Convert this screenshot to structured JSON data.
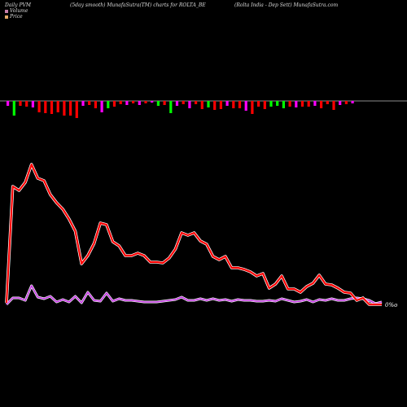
{
  "header": {
    "left": "Daily PVM",
    "middle": "(5day smooth) MunafaSutra(TM) charts for ROLTA_BE",
    "right": "(Rolta India - Dep Sett) MunafaSutra.com"
  },
  "legend": {
    "volume_label": "Volume",
    "price_label": "Price",
    "volume_color": "#c87eaa",
    "price_color": "#e4a866"
  },
  "colors": {
    "background": "#000000",
    "price_line": "#ff0000",
    "price_glow": "#ffffff",
    "volume_line": "#c030e0",
    "bar_up": "#00ff00",
    "bar_down": "#ff0000",
    "bar_neutral": "#ff00ff",
    "baseline": "#bbbbbb"
  },
  "end_label": "0%o",
  "chart_data": {
    "type": "line",
    "series": [
      {
        "kind": "price",
        "values": [
          2,
          145,
          140,
          150,
          172,
          155,
          152,
          135,
          125,
          117,
          105,
          90,
          50,
          60,
          75,
          100,
          98,
          77,
          72,
          60,
          60,
          63,
          60,
          52,
          52,
          51,
          57,
          68,
          88,
          85,
          88,
          78,
          74,
          59,
          55,
          59,
          45,
          45,
          43,
          40,
          35,
          38,
          20,
          25,
          35,
          19,
          19,
          15,
          22,
          26,
          36,
          25,
          24,
          20,
          15,
          14,
          5,
          8,
          0,
          0,
          0
        ]
      },
      {
        "kind": "volume",
        "values": [
          0,
          8,
          8,
          5,
          23,
          9,
          7,
          10,
          3,
          6,
          3,
          10,
          2,
          15,
          5,
          4,
          14,
          4,
          7,
          5,
          5,
          4,
          3,
          3,
          3,
          4,
          5,
          6,
          9,
          5,
          5,
          7,
          5,
          7,
          5,
          6,
          4,
          6,
          5,
          5,
          4,
          4,
          5,
          4,
          7,
          5,
          3,
          4,
          6,
          3,
          6,
          5,
          7,
          5,
          5,
          7,
          8,
          7,
          5,
          1,
          3
        ]
      }
    ],
    "bars": [
      {
        "value": -6,
        "color": "neutral"
      },
      {
        "value": -18,
        "color": "up"
      },
      {
        "value": -6,
        "color": "down"
      },
      {
        "value": -7,
        "color": "down"
      },
      {
        "value": -8,
        "color": "neutral"
      },
      {
        "value": -14,
        "color": "down"
      },
      {
        "value": -15,
        "color": "down"
      },
      {
        "value": -16,
        "color": "down"
      },
      {
        "value": -14,
        "color": "down"
      },
      {
        "value": -18,
        "color": "down"
      },
      {
        "value": -18,
        "color": "down"
      },
      {
        "value": -21,
        "color": "down"
      },
      {
        "value": -6,
        "color": "neutral"
      },
      {
        "value": -5,
        "color": "down"
      },
      {
        "value": -9,
        "color": "down"
      },
      {
        "value": -14,
        "color": "neutral"
      },
      {
        "value": -9,
        "color": "up"
      },
      {
        "value": -7,
        "color": "down"
      },
      {
        "value": -4,
        "color": "down"
      },
      {
        "value": -5,
        "color": "neutral"
      },
      {
        "value": -3,
        "color": "down"
      },
      {
        "value": -5,
        "color": "neutral"
      },
      {
        "value": -3,
        "color": "down"
      },
      {
        "value": -2,
        "color": "neutral"
      },
      {
        "value": -6,
        "color": "up"
      },
      {
        "value": -5,
        "color": "down"
      },
      {
        "value": -15,
        "color": "up"
      },
      {
        "value": -6,
        "color": "neutral"
      },
      {
        "value": -4,
        "color": "down"
      },
      {
        "value": -9,
        "color": "neutral"
      },
      {
        "value": -4,
        "color": "down"
      },
      {
        "value": -10,
        "color": "down"
      },
      {
        "value": -8,
        "color": "up"
      },
      {
        "value": -11,
        "color": "down"
      },
      {
        "value": -10,
        "color": "down"
      },
      {
        "value": -6,
        "color": "neutral"
      },
      {
        "value": -9,
        "color": "down"
      },
      {
        "value": -9,
        "color": "down"
      },
      {
        "value": -12,
        "color": "neutral"
      },
      {
        "value": -16,
        "color": "down"
      },
      {
        "value": -7,
        "color": "down"
      },
      {
        "value": -10,
        "color": "down"
      },
      {
        "value": -7,
        "color": "up"
      },
      {
        "value": -6,
        "color": "up"
      },
      {
        "value": -9,
        "color": "up"
      },
      {
        "value": -7,
        "color": "down"
      },
      {
        "value": -8,
        "color": "neutral"
      },
      {
        "value": -7,
        "color": "down"
      },
      {
        "value": -7,
        "color": "down"
      },
      {
        "value": -6,
        "color": "neutral"
      },
      {
        "value": -9,
        "color": "down"
      },
      {
        "value": -4,
        "color": "down"
      },
      {
        "value": -11,
        "color": "down"
      },
      {
        "value": -5,
        "color": "neutral"
      },
      {
        "value": -4,
        "color": "down"
      },
      {
        "value": -3,
        "color": "neutral"
      }
    ]
  }
}
